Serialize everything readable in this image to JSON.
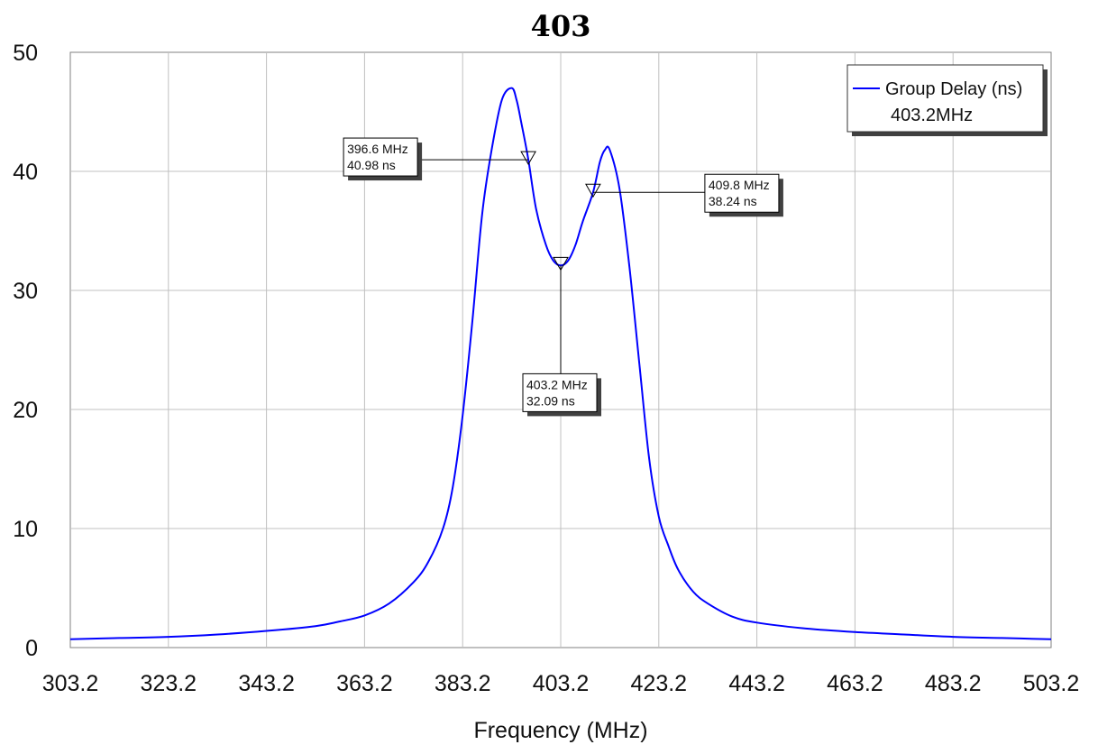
{
  "chart_data": {
    "type": "line",
    "title": "403",
    "xlabel": "Frequency (MHz)",
    "ylabel": "",
    "xlim": [
      303.2,
      503.2
    ],
    "ylim": [
      0,
      50
    ],
    "xticks": [
      303.2,
      323.2,
      343.2,
      363.2,
      383.2,
      403.2,
      423.2,
      443.2,
      463.2,
      483.2,
      503.2
    ],
    "xtick_labels": [
      "303.2",
      "323.2",
      "343.2",
      "363.2",
      "383.2",
      "403.2",
      "423.2",
      "443.2",
      "463.2",
      "483.2",
      "503.2"
    ],
    "yticks": [
      0,
      10,
      20,
      30,
      40,
      50
    ],
    "ytick_labels": [
      "0",
      "10",
      "20",
      "30",
      "40",
      "50"
    ],
    "grid": true,
    "legend_position": "top-right",
    "legend": {
      "entries": [
        "Group Delay (ns)"
      ],
      "subtitle": "403.2MHz"
    },
    "series": [
      {
        "name": "Group Delay (ns)",
        "color": "#0000ff",
        "x": [
          303.2,
          313.2,
          323.2,
          333.2,
          343.2,
          353.2,
          358.2,
          363.2,
          368.2,
          373.2,
          376.2,
          379.2,
          381.2,
          383.2,
          385.2,
          387.2,
          389.2,
          391.2,
          393.2,
          394.2,
          395.2,
          396.6,
          398.2,
          400.2,
          401.7,
          403.2,
          404.7,
          406.2,
          407.7,
          409.8,
          411.2,
          412.2,
          413.2,
          415.2,
          417.2,
          419.2,
          421.2,
          423.2,
          425.2,
          427.2,
          430.2,
          433.2,
          438.2,
          443.2,
          453.2,
          463.2,
          473.2,
          483.2,
          493.2,
          503.2
        ],
        "y": [
          0.7,
          0.8,
          0.9,
          1.1,
          1.4,
          1.8,
          2.2,
          2.7,
          3.7,
          5.5,
          7.2,
          10.0,
          13.5,
          19.5,
          27.5,
          36.5,
          42.0,
          46.0,
          47.0,
          46.0,
          44.0,
          40.98,
          36.8,
          33.8,
          32.5,
          32.09,
          32.5,
          33.8,
          35.8,
          38.24,
          40.8,
          41.8,
          41.8,
          38.5,
          32.0,
          24.0,
          16.0,
          11.0,
          8.5,
          6.5,
          4.7,
          3.7,
          2.6,
          2.1,
          1.6,
          1.3,
          1.1,
          0.9,
          0.8,
          0.7
        ]
      }
    ],
    "markers": [
      {
        "x": 396.6,
        "y": 40.98,
        "label_freq": "396.6 MHz",
        "label_value": "40.98 ns",
        "label_side": "left"
      },
      {
        "x": 403.2,
        "y": 32.09,
        "label_freq": "403.2 MHz",
        "label_value": "32.09 ns",
        "label_side": "below"
      },
      {
        "x": 409.8,
        "y": 38.24,
        "label_freq": "409.8 MHz",
        "label_value": "38.24 ns",
        "label_side": "right"
      }
    ]
  }
}
